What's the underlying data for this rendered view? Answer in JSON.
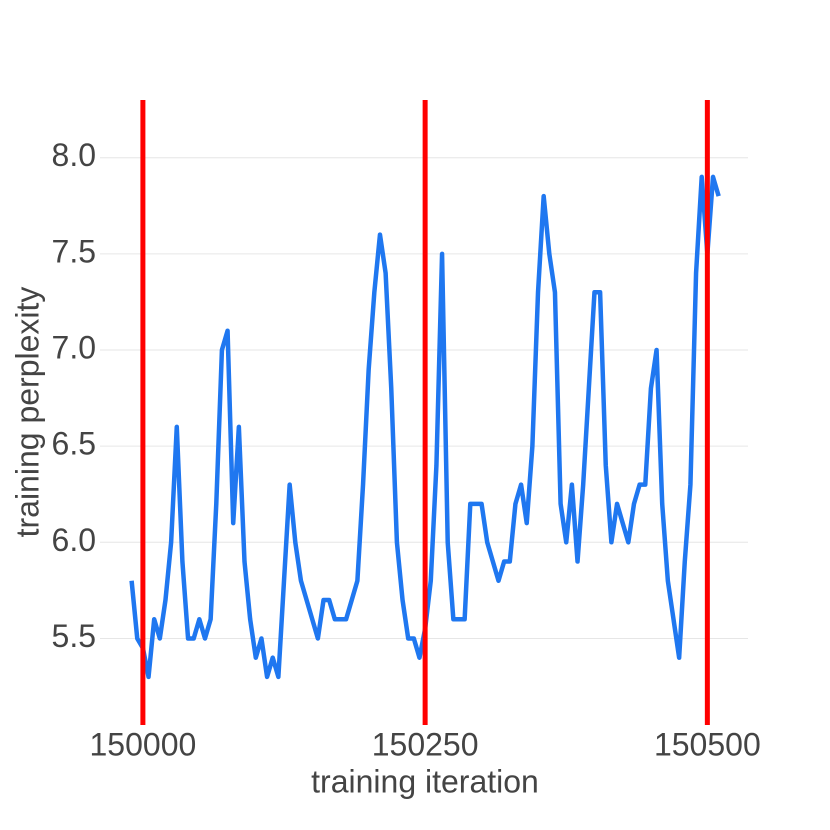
{
  "chart_data": {
    "type": "line",
    "xlabel": "training iteration",
    "ylabel": "training perplexity",
    "x": [
      149990,
      149995,
      150000,
      150005,
      150010,
      150015,
      150020,
      150025,
      150030,
      150035,
      150040,
      150045,
      150050,
      150055,
      150060,
      150065,
      150070,
      150075,
      150080,
      150085,
      150090,
      150095,
      150100,
      150105,
      150110,
      150115,
      150120,
      150125,
      150130,
      150135,
      150140,
      150145,
      150150,
      150155,
      150160,
      150165,
      150170,
      150175,
      150180,
      150185,
      150190,
      150195,
      150200,
      150205,
      150210,
      150215,
      150220,
      150225,
      150230,
      150235,
      150240,
      150245,
      150250,
      150255,
      150260,
      150265,
      150270,
      150275,
      150280,
      150285,
      150290,
      150295,
      150300,
      150305,
      150310,
      150315,
      150320,
      150325,
      150330,
      150335,
      150340,
      150345,
      150350,
      150355,
      150360,
      150365,
      150370,
      150375,
      150380,
      150385,
      150390,
      150395,
      150400,
      150405,
      150410,
      150415,
      150420,
      150425,
      150430,
      150435,
      150440,
      150445,
      150450,
      150455,
      150460,
      150465,
      150470,
      150475,
      150480,
      150485,
      150490,
      150495,
      150500,
      150505,
      150510
    ],
    "series": [
      {
        "color": "#1f77f0",
        "values": [
          5.8,
          5.5,
          5.45,
          5.3,
          5.6,
          5.5,
          5.7,
          6.0,
          6.6,
          5.9,
          5.5,
          5.5,
          5.6,
          5.5,
          5.6,
          6.2,
          7.0,
          7.1,
          6.1,
          6.6,
          5.9,
          5.6,
          5.4,
          5.5,
          5.3,
          5.4,
          5.3,
          5.8,
          6.3,
          6.0,
          5.8,
          5.7,
          5.6,
          5.5,
          5.7,
          5.7,
          5.6,
          5.6,
          5.6,
          5.7,
          5.8,
          6.3,
          6.9,
          7.3,
          7.6,
          7.4,
          6.8,
          6.0,
          5.7,
          5.5,
          5.5,
          5.4,
          5.55,
          5.8,
          6.4,
          7.5,
          6.0,
          5.6,
          5.6,
          5.6,
          6.2,
          6.2,
          6.2,
          6.0,
          5.9,
          5.8,
          5.9,
          5.9,
          6.2,
          6.3,
          6.1,
          6.5,
          7.3,
          7.8,
          7.5,
          7.3,
          6.2,
          6.0,
          6.3,
          5.9,
          6.3,
          6.8,
          7.3,
          7.3,
          6.4,
          6.0,
          6.2,
          6.1,
          6.0,
          6.2,
          6.3,
          6.3,
          6.8,
          7.0,
          6.2,
          5.8,
          5.6,
          5.4,
          5.9,
          6.3,
          7.4,
          7.9,
          7.5,
          7.9,
          7.8
        ]
      }
    ],
    "vlines": {
      "color": "#ff0000",
      "x": [
        150000,
        150250,
        150500
      ]
    },
    "xlim": [
      149962,
      150536
    ],
    "xticks": [
      150000,
      150250,
      150500
    ],
    "ylim": [
      5.05,
      8.3
    ],
    "yticks": [
      5.5,
      {
        "value": 6,
        "label": "6.0"
      },
      6.5,
      {
        "value": 7,
        "label": "7.0"
      },
      7.5,
      {
        "value": 8,
        "label": "8.0"
      }
    ],
    "grid": true
  }
}
